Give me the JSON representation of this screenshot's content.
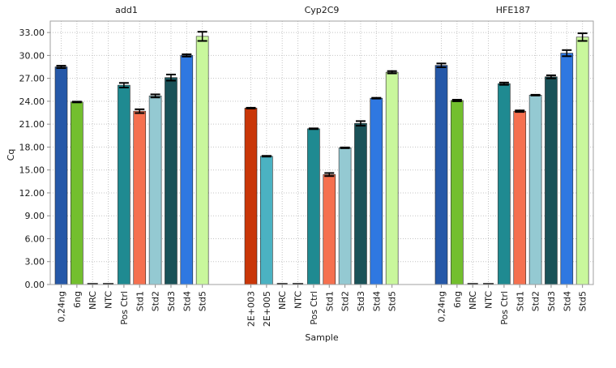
{
  "chart_data": {
    "type": "bar",
    "xlabel": "Sample",
    "ylabel": "Cq",
    "ylim": [
      0,
      34.5
    ],
    "yticks": [
      "0.00",
      "3.00",
      "6.00",
      "9.00",
      "12.00",
      "15.00",
      "18.00",
      "21.00",
      "24.00",
      "27.00",
      "30.00",
      "33.00"
    ],
    "grid": true,
    "error_bars": true,
    "panels": [
      {
        "title": "add1",
        "bars": [
          {
            "label": "0,24ng",
            "value": 28.5,
            "error": 0.15,
            "color": "#2558a8"
          },
          {
            "label": "6ng",
            "value": 23.9,
            "error": 0.05,
            "color": "#73bf2e"
          },
          {
            "label": "NRC",
            "value": 0.0,
            "error": 0.0,
            "color": "#2558a8"
          },
          {
            "label": "NTC",
            "value": 0.0,
            "error": 0.0,
            "color": "#2558a8"
          },
          {
            "label": "Pos Ctrl",
            "value": 26.1,
            "error": 0.3,
            "color": "#1f8a91"
          },
          {
            "label": "Std1",
            "value": 22.7,
            "error": 0.25,
            "color": "#f5704f"
          },
          {
            "label": "Std2",
            "value": 24.7,
            "error": 0.2,
            "color": "#94c9d2"
          },
          {
            "label": "Std3",
            "value": 27.1,
            "error": 0.4,
            "color": "#1a5258"
          },
          {
            "label": "Std4",
            "value": 30.0,
            "error": 0.15,
            "color": "#2f78e1"
          },
          {
            "label": "Std5",
            "value": 32.5,
            "error": 0.6,
            "color": "#c9f79c"
          }
        ]
      },
      {
        "title": "Cyp2C9",
        "bars": [
          {
            "label": "2E+003",
            "value": 23.1,
            "error": 0.05,
            "color": "#c93608"
          },
          {
            "label": "2E+005",
            "value": 16.8,
            "error": 0.05,
            "color": "#4bb2c2"
          },
          {
            "label": "NRC",
            "value": 0.0,
            "error": 0.0,
            "color": "#2558a8"
          },
          {
            "label": "NTC",
            "value": 0.0,
            "error": 0.0,
            "color": "#2558a8"
          },
          {
            "label": "Pos Ctrl",
            "value": 20.4,
            "error": 0.05,
            "color": "#1f8a91"
          },
          {
            "label": "Std1",
            "value": 14.4,
            "error": 0.2,
            "color": "#f5704f"
          },
          {
            "label": "Std2",
            "value": 17.9,
            "error": 0.05,
            "color": "#94c9d2"
          },
          {
            "label": "Std3",
            "value": 21.1,
            "error": 0.3,
            "color": "#1a5258"
          },
          {
            "label": "Std4",
            "value": 24.4,
            "error": 0.05,
            "color": "#2f78e1"
          },
          {
            "label": "Std5",
            "value": 27.8,
            "error": 0.15,
            "color": "#c9f79c"
          }
        ]
      },
      {
        "title": "HFE187",
        "bars": [
          {
            "label": "0,24ng",
            "value": 28.7,
            "error": 0.25,
            "color": "#2558a8"
          },
          {
            "label": "6ng",
            "value": 24.1,
            "error": 0.1,
            "color": "#73bf2e"
          },
          {
            "label": "NRC",
            "value": 0.0,
            "error": 0.0,
            "color": "#2558a8"
          },
          {
            "label": "NTC",
            "value": 0.0,
            "error": 0.0,
            "color": "#2558a8"
          },
          {
            "label": "Pos Ctrl",
            "value": 26.3,
            "error": 0.15,
            "color": "#1f8a91"
          },
          {
            "label": "Std1",
            "value": 22.7,
            "error": 0.1,
            "color": "#f5704f"
          },
          {
            "label": "Std2",
            "value": 24.8,
            "error": 0.05,
            "color": "#94c9d2"
          },
          {
            "label": "Std3",
            "value": 27.2,
            "error": 0.2,
            "color": "#1a5258"
          },
          {
            "label": "Std4",
            "value": 30.3,
            "error": 0.4,
            "color": "#2f78e1"
          },
          {
            "label": "Std5",
            "value": 32.4,
            "error": 0.5,
            "color": "#c9f79c"
          }
        ]
      }
    ]
  }
}
